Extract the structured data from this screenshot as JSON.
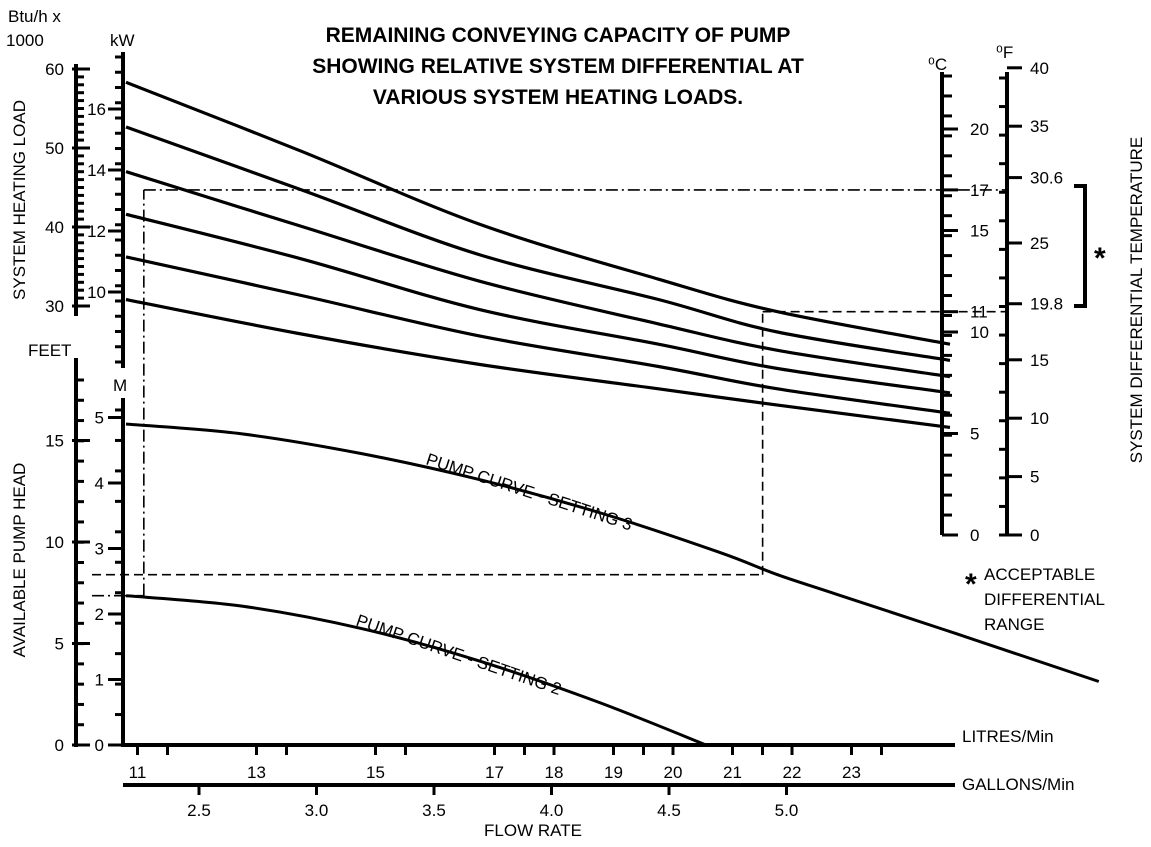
{
  "chart_data": {
    "type": "line",
    "title_lines": [
      "REMAINING CONVEYING CAPACITY OF PUMP",
      "SHOWING RELATIVE SYSTEM DIFFERENTIAL AT",
      "VARIOUS SYSTEM HEATING LOADS."
    ],
    "xlabel": "FLOW RATE",
    "x_axes": {
      "litres": {
        "unit_label": "LITRES/Min",
        "ticks": [
          "11",
          "13",
          "15",
          "17",
          "18",
          "19",
          "20",
          "21",
          "22",
          "23"
        ],
        "range": [
          10,
          24
        ]
      },
      "gallons": {
        "unit_label": "GALLONS/Min",
        "ticks": [
          "2.5",
          "3.0",
          "3.5",
          "4.0",
          "4.5",
          "5.0"
        ],
        "range": [
          2.2,
          5.3
        ]
      }
    },
    "y_axes": {
      "heating_load_btu": {
        "unit_label_lines": [
          "Btu/h x",
          "1000"
        ],
        "ticks": [
          "60",
          "50",
          "40",
          "30"
        ]
      },
      "heating_load_kw": {
        "unit_label": "kW",
        "ticks": [
          "16",
          "14",
          "12",
          "10"
        ]
      },
      "system_heating_load_label": "SYSTEM HEATING LOAD",
      "pump_head_feet": {
        "unit_label": "FEET",
        "ticks": [
          "15",
          "10",
          "5",
          "0"
        ],
        "range": [
          0,
          18
        ]
      },
      "pump_head_m": {
        "unit_label": "M",
        "ticks": [
          "5",
          "4",
          "3",
          "2",
          "1",
          "0"
        ],
        "range": [
          0,
          5.5
        ]
      },
      "available_pump_head_label": "AVAILABLE PUMP HEAD",
      "diff_c": {
        "unit_label": "⁰C",
        "ticks": [
          "20",
          "17",
          "15",
          "11",
          "10",
          "5",
          "0"
        ],
        "range": [
          0,
          23.5
        ]
      },
      "diff_f": {
        "unit_label": "⁰F",
        "ticks": [
          "40",
          "35",
          "30.6",
          "25",
          "19.8",
          "15",
          "10",
          "5",
          "0"
        ],
        "range": [
          0,
          40
        ]
      },
      "system_differential_label": "SYSTEM DIFFERENTIAL TEMPERATURE"
    },
    "load_curves": [
      {
        "load_kw": 16.5,
        "x": [
          10.05,
          13,
          16,
          19,
          21,
          23.9
        ],
        "diff_c": [
          22.3,
          18.9,
          15.3,
          12.6,
          11.0,
          9.4
        ]
      },
      {
        "load_kw": 15,
        "x": [
          10.05,
          13,
          16,
          19,
          21,
          23.9
        ],
        "diff_c": [
          20.1,
          17.0,
          13.8,
          11.6,
          10.0,
          8.6
        ]
      },
      {
        "load_kw": 13.7,
        "x": [
          10.05,
          13,
          16,
          19,
          21,
          23.9
        ],
        "diff_c": [
          17.9,
          15.2,
          12.5,
          10.4,
          9.1,
          7.8
        ]
      },
      {
        "load_kw": 12.3,
        "x": [
          10.05,
          13,
          16,
          19,
          21,
          23.9
        ],
        "diff_c": [
          15.8,
          13.6,
          11.1,
          9.4,
          8.2,
          7.0
        ]
      },
      {
        "load_kw": 11,
        "x": [
          10.05,
          13,
          16,
          19,
          21,
          23.9
        ],
        "diff_c": [
          13.7,
          11.8,
          9.8,
          8.3,
          7.2,
          6.0
        ]
      },
      {
        "load_kw": 9.6,
        "x": [
          10.05,
          13,
          16,
          19,
          21,
          23.9
        ],
        "diff_c": [
          11.6,
          9.9,
          8.4,
          7.2,
          6.4,
          5.3
        ]
      }
    ],
    "pump_curves": [
      {
        "name": "PUMP CURVE - SETTING 3",
        "x": [
          10.05,
          12,
          14,
          16,
          18,
          20,
          21,
          22,
          24,
          26.4
        ],
        "head_m": [
          4.9,
          4.75,
          4.45,
          4.05,
          3.55,
          2.95,
          2.6,
          2.3,
          1.7,
          0.97
        ]
      },
      {
        "name": "PUMP CURVE - SETTING 2",
        "x": [
          10.05,
          12,
          14,
          16,
          18,
          19.8
        ],
        "head_m": [
          2.28,
          2.12,
          1.78,
          1.28,
          0.65,
          0.0
        ]
      }
    ],
    "reference_lines": [
      {
        "style": "dashed",
        "x": 20.75,
        "head_m": 2.6,
        "diff_c": 11
      },
      {
        "style": "dashdot",
        "x": 10.35,
        "head_m": 2.28,
        "diff_c": 17
      }
    ],
    "acceptable_range": {
      "from_f": 19.8,
      "to_f": 30.6,
      "marker": "*",
      "legend_lines": [
        "ACCEPTABLE",
        "DIFFERENTIAL",
        "RANGE"
      ]
    }
  }
}
